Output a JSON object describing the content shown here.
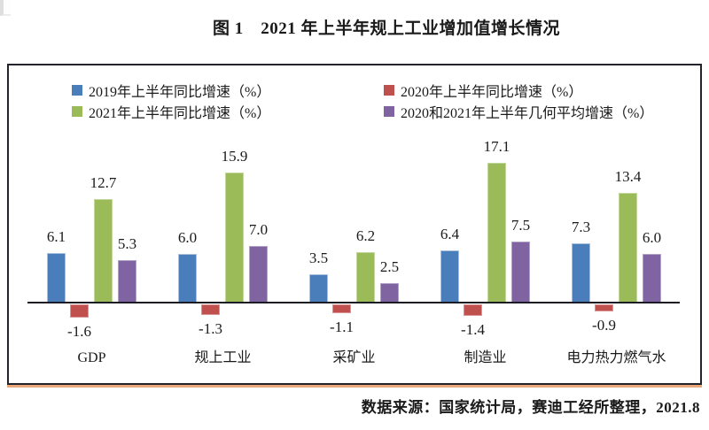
{
  "page": {
    "title": "图 1　2021 年上半年规上工业增加值增长情况",
    "source_note": "数据来源：国家统计局，赛迪工经所整理，2021.8"
  },
  "colors": {
    "series_2019": "#4A7EBB",
    "series_2020": "#C0504D",
    "series_2021": "#9BBB59",
    "series_geomean": "#8064A2",
    "edge_2019": "#A7C0DE",
    "edge_2020": "#D99694",
    "edge_2021": "#C3D69B",
    "edge_geomean": "#B3A2C7",
    "axis": "#1C1C24",
    "frame": "#23232B",
    "frame_shadow": "#EBA87A",
    "text": "#1A1A1A"
  },
  "chart_data": {
    "type": "bar",
    "title": "图 1　2021 年上半年规上工业增加值增长情况",
    "categories": [
      "GDP",
      "规上工业",
      "采矿业",
      "制造业",
      "电力热力燃气水"
    ],
    "series": [
      {
        "key": "2019h1",
        "name": "2019年上半年同比增速（%）",
        "color_key": "series_2019",
        "edge_key": "edge_2019",
        "values": [
          6.1,
          6.0,
          3.5,
          6.4,
          7.3
        ]
      },
      {
        "key": "2020h1",
        "name": "2020年上半年同比增速（%）",
        "color_key": "series_2020",
        "edge_key": "edge_2020",
        "values": [
          -1.6,
          -1.3,
          -1.1,
          -1.4,
          -0.9
        ]
      },
      {
        "key": "2021h1",
        "name": "2021年上半年同比增速（%）",
        "color_key": "series_2021",
        "edge_key": "edge_2021",
        "values": [
          12.7,
          15.9,
          6.2,
          17.1,
          13.4
        ]
      },
      {
        "key": "geomean",
        "name": "2020和2021年上半年几何平均增速（%）",
        "color_key": "series_geomean",
        "edge_key": "edge_geomean",
        "values": [
          5.3,
          7.0,
          2.5,
          7.5,
          6.0
        ]
      }
    ],
    "value_labels": true,
    "value_label_format": "0.0",
    "legend_position": "top-inside",
    "grid": false,
    "x_axis_line": true,
    "y_axis_visible": false,
    "ylim": [
      -2.5,
      18.5
    ],
    "source_note": "数据来源：国家统计局，赛迪工经所整理，2021.8"
  }
}
